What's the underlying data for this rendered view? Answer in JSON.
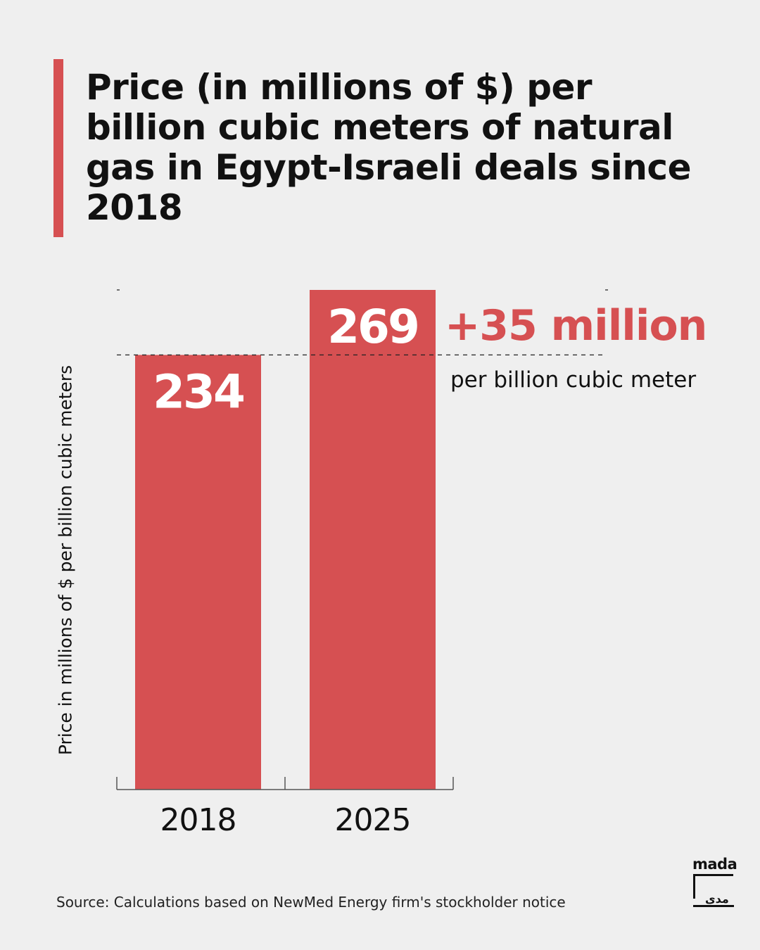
{
  "colors": {
    "accent": "#d65052",
    "text": "#111111",
    "background": "#efefef"
  },
  "chart_data": {
    "type": "bar",
    "title": "Price (in millions of $) per billion cubic meters of natural gas in Egypt-Israeli deals since 2018",
    "ylabel": "Price in millions of $ per billion cubic meters",
    "xlabel": "",
    "categories": [
      "2018",
      "2025"
    ],
    "values": [
      234,
      269
    ],
    "data_labels": [
      "234",
      "269"
    ],
    "ylim": [
      0,
      269
    ],
    "grid": false,
    "annotation": {
      "value": "+35 million",
      "subtext": "per billion cubic meter",
      "reference_value": 234
    }
  },
  "source": "Source: Calculations based on NewMed Energy firm's stockholder notice",
  "logo": {
    "text": "mada",
    "icon": "mada-logo-icon",
    "glyph": "مدى"
  }
}
